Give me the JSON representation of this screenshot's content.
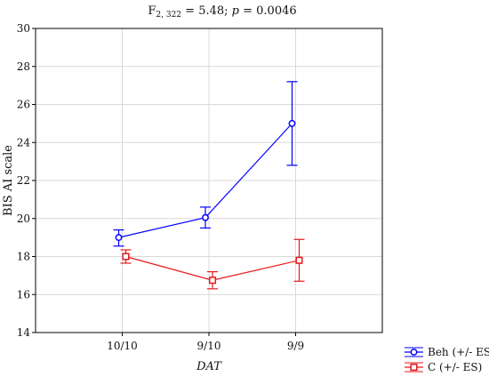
{
  "chart_data": {
    "type": "line",
    "title_parts": [
      "F",
      "2, 322",
      " = 5.48; ",
      "p",
      " = 0.0046"
    ],
    "xlabel": "DAT",
    "ylabel": "BIS AI scale",
    "categories": [
      "10/10",
      "9/10",
      "9/9"
    ],
    "ylim": [
      14,
      30
    ],
    "yticks": [
      "14",
      "16",
      "18",
      "20",
      "22",
      "24",
      "26",
      "28",
      "30"
    ],
    "grid": true,
    "legend_position": "bottom-right",
    "series": [
      {
        "name": "Beh (+/- ES)",
        "color": "#0000ff",
        "marker": "circle",
        "values": [
          19.0,
          20.05,
          25.0
        ],
        "err_low": [
          18.55,
          19.5,
          22.8
        ],
        "err_high": [
          19.4,
          20.6,
          27.2
        ]
      },
      {
        "name": "C (+/- ES)",
        "color": "#e8191b",
        "marker": "square",
        "values": [
          18.0,
          16.75,
          17.8
        ],
        "err_low": [
          17.65,
          16.3,
          16.7
        ],
        "err_high": [
          18.35,
          17.2,
          18.9
        ]
      }
    ]
  }
}
